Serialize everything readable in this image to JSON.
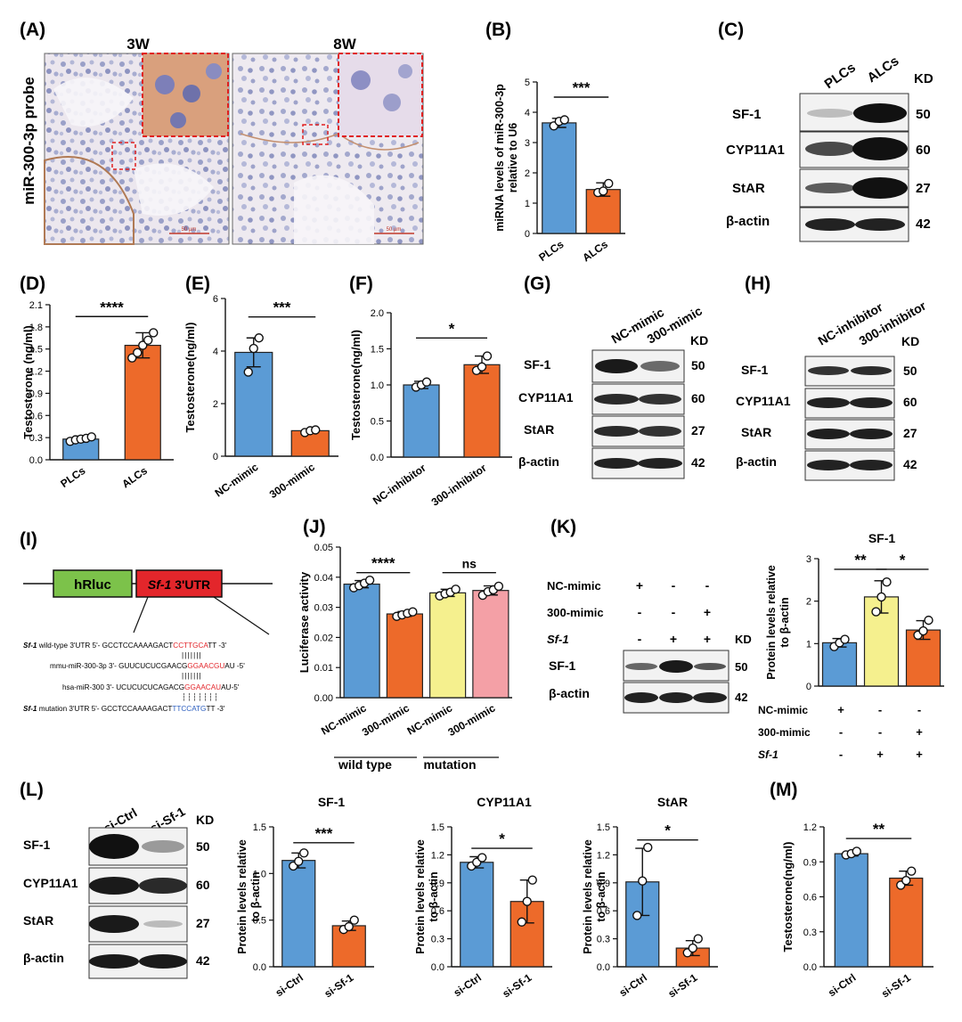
{
  "panel_labels": {
    "A": "(A)",
    "B": "(B)",
    "C": "(C)",
    "D": "(D)",
    "E": "(E)",
    "F": "(F)",
    "G": "(G)",
    "H": "(H)",
    "I": "(I)",
    "J": "(J)",
    "K": "(K)",
    "L": "(L)",
    "M": "(M)"
  },
  "common": {
    "kd": "KD",
    "sf1": "SF-1",
    "cyp": "CYP11A1",
    "star": "StAR",
    "actin": "β-actin",
    "kd50": "50",
    "kd60": "60",
    "kd27": "27",
    "kd42": "42",
    "plus": "+",
    "minus": "-"
  },
  "panelA": {
    "col1": "3W",
    "col2": "8W",
    "ylabel": "miR-300-3p probe",
    "scale": "50 µm"
  },
  "panelC": {
    "lanes": [
      "PLCs",
      "ALCs"
    ]
  },
  "panelG": {
    "lanes": [
      "NC-mimic",
      "300-mimic"
    ]
  },
  "panelH": {
    "lanes": [
      "NC-inhibitor",
      "300-inhibitor"
    ]
  },
  "panelI": {
    "hrluc": "hRluc",
    "sf1italic": "Sf-1",
    "utr": " 3'UTR",
    "r1": {
      "a": "Sf-1",
      "b": " wild-type  3'UTR  5'- GCCTCCAAAAGACT",
      "c": "CCTTGCA",
      "d": "TT -3'"
    },
    "r2": {
      "a": "mmu-miR-300-3p  3'- GUUCUCUCGAACG",
      "b": "GGAACGU",
      "c": "AU -5'"
    },
    "r3": {
      "a": "hsa-miR-300   3'- UCUCUCUCAGACG",
      "b": "GGAACAU",
      "c": "AU-5'"
    },
    "r4": {
      "a": "Sf-1",
      "b": " mutation  3'UTR  5'- GCCTCCAAAAGACT",
      "c": "TTCCATG",
      "d": "TT -3'"
    }
  },
  "panelJ": {
    "group1": "wild type",
    "group2": "mutation"
  },
  "panelK": {
    "rowlabels": [
      "NC-mimic",
      "300-mimic",
      "Sf-1"
    ],
    "signs": [
      [
        "+",
        "-",
        "-"
      ],
      [
        "-",
        "-",
        "+"
      ],
      [
        "-",
        "+",
        "+"
      ]
    ]
  },
  "panelL": {
    "lanes": [
      "si-Ctrl",
      "si-Sf-1"
    ]
  },
  "chart_data": [
    {
      "id": "B",
      "type": "bar",
      "categories": [
        "PLCs",
        "ALCs"
      ],
      "values": [
        3.65,
        1.45
      ],
      "errors": [
        0.15,
        0.22
      ],
      "points": [
        [
          3.55,
          3.7,
          3.75
        ],
        [
          1.35,
          1.4,
          1.65
        ]
      ],
      "colors": [
        "#5b9bd5",
        "#ed6a2a"
      ],
      "ylabel": "miRNA levels of miR-300-3p relative to U6",
      "ylim": [
        0,
        5
      ],
      "yticks": [
        0,
        1,
        2,
        3,
        4,
        5
      ],
      "sig": [
        {
          "a": 0,
          "b": 1,
          "label": "***",
          "y": 4.5
        }
      ]
    },
    {
      "id": "D",
      "type": "bar",
      "categories": [
        "PLCs",
        "ALCs"
      ],
      "values": [
        0.28,
        1.55
      ],
      "errors": [
        0.04,
        0.17
      ],
      "points": [
        [
          0.25,
          0.27,
          0.28,
          0.29,
          0.31
        ],
        [
          1.38,
          1.45,
          1.55,
          1.62,
          1.72
        ]
      ],
      "colors": [
        "#5b9bd5",
        "#ed6a2a"
      ],
      "ylabel": "Testosterone (ng/ml)",
      "ylim": [
        0,
        2.1
      ],
      "yticks": [
        "0.0",
        "0.3",
        "0.6",
        "0.9",
        "1.2",
        "1.5",
        "1.8",
        "2.1"
      ],
      "sig": [
        {
          "a": 0,
          "b": 1,
          "label": "****",
          "y": 1.94
        }
      ]
    },
    {
      "id": "E",
      "type": "bar",
      "categories": [
        "NC-mimic",
        "300-mimic"
      ],
      "values": [
        3.95,
        0.97
      ],
      "errors": [
        0.55,
        0.07
      ],
      "points": [
        [
          3.2,
          4.1,
          4.5
        ],
        [
          0.9,
          0.97,
          1.0
        ]
      ],
      "colors": [
        "#5b9bd5",
        "#ed6a2a"
      ],
      "ylabel": "Testosterone(ng/ml)",
      "ylim": [
        0,
        6
      ],
      "yticks": [
        0,
        2,
        4,
        6
      ],
      "sig": [
        {
          "a": 0,
          "b": 1,
          "label": "***",
          "y": 5.3
        }
      ]
    },
    {
      "id": "F",
      "type": "bar",
      "categories": [
        "NC-inhibitor",
        "300-inhibitor"
      ],
      "values": [
        1.0,
        1.28
      ],
      "errors": [
        0.05,
        0.12
      ],
      "points": [
        [
          0.97,
          1.0,
          1.04
        ],
        [
          1.2,
          1.25,
          1.4
        ]
      ],
      "colors": [
        "#5b9bd5",
        "#ed6a2a"
      ],
      "ylabel": "Testosterone(ng/ml)",
      "ylim": [
        0,
        2.0
      ],
      "yticks": [
        "0.0",
        "0.5",
        "1.0",
        "1.5",
        "2.0"
      ],
      "sig": [
        {
          "a": 0,
          "b": 1,
          "label": "*",
          "y": 1.65
        }
      ]
    },
    {
      "id": "J",
      "type": "bar",
      "categories": [
        "NC-mimic",
        "300-mimic",
        "NC-mimic",
        "300-mimic"
      ],
      "values": [
        0.0377,
        0.0278,
        0.0348,
        0.0356
      ],
      "errors": [
        0.0012,
        0.0008,
        0.0012,
        0.0015
      ],
      "points": [
        [
          0.0365,
          0.0372,
          0.038,
          0.039
        ],
        [
          0.027,
          0.0275,
          0.028,
          0.0285
        ],
        [
          0.0338,
          0.0345,
          0.035,
          0.036
        ],
        [
          0.034,
          0.0352,
          0.0358,
          0.037
        ]
      ],
      "colors": [
        "#5b9bd5",
        "#ed6a2a",
        "#f5f08e",
        "#f4a0a6"
      ],
      "ylabel": "Luciferase activity",
      "ylim": [
        0,
        0.05
      ],
      "yticks": [
        "0.00",
        "0.01",
        "0.02",
        "0.03",
        "0.04",
        "0.05"
      ],
      "sig": [
        {
          "a": 0,
          "b": 1,
          "label": "****",
          "y": 0.0415
        },
        {
          "a": 2,
          "b": 3,
          "label": "ns",
          "y": 0.0415
        }
      ]
    },
    {
      "id": "K",
      "type": "bar",
      "categories": [
        "",
        "",
        ""
      ],
      "values": [
        1.02,
        2.1,
        1.32
      ],
      "errors": [
        0.1,
        0.38,
        0.22
      ],
      "points": [
        [
          0.93,
          1.02,
          1.1
        ],
        [
          1.75,
          2.1,
          2.45
        ],
        [
          1.2,
          1.3,
          1.55
        ]
      ],
      "colors": [
        "#5b9bd5",
        "#f5f08e",
        "#ed6a2a"
      ],
      "title": "SF-1",
      "ylabel": "Protein levels relative to β-actin",
      "ylim": [
        0,
        3
      ],
      "yticks": [
        0,
        1,
        2,
        3
      ],
      "sig": [
        {
          "a": 0,
          "b": 1,
          "label": "**",
          "y": 2.75
        },
        {
          "a": 1,
          "b": 2,
          "label": "*",
          "y": 2.75
        }
      ]
    },
    {
      "id": "L1",
      "type": "bar",
      "categories": [
        "si-Ctrl",
        "si-Sf-1"
      ],
      "values": [
        1.14,
        0.44
      ],
      "errors": [
        0.08,
        0.05
      ],
      "points": [
        [
          1.08,
          1.13,
          1.22
        ],
        [
          0.4,
          0.43,
          0.5
        ]
      ],
      "colors": [
        "#5b9bd5",
        "#ed6a2a"
      ],
      "title": "SF-1",
      "ylabel": "Protein levels relative to β-actin",
      "ylim": [
        0,
        1.5
      ],
      "yticks": [
        "0.0",
        "0.5",
        "1.0",
        "1.5"
      ],
      "sig": [
        {
          "a": 0,
          "b": 1,
          "label": "***",
          "y": 1.33
        }
      ]
    },
    {
      "id": "L2",
      "type": "bar",
      "categories": [
        "si-Ctrl",
        "si-Sf-1"
      ],
      "values": [
        1.12,
        0.7
      ],
      "errors": [
        0.06,
        0.23
      ],
      "points": [
        [
          1.08,
          1.12,
          1.17
        ],
        [
          0.48,
          0.7,
          0.93
        ]
      ],
      "colors": [
        "#5b9bd5",
        "#ed6a2a"
      ],
      "title": "CYP11A1",
      "ylabel": "Protein levels relative to β-actin",
      "ylim": [
        0,
        1.5
      ],
      "yticks": [
        "0.0",
        "0.3",
        "0.6",
        "0.9",
        "1.2",
        "1.5"
      ],
      "sig": [
        {
          "a": 0,
          "b": 1,
          "label": "*",
          "y": 1.27
        }
      ]
    },
    {
      "id": "L3",
      "type": "bar",
      "categories": [
        "si-Ctrl",
        "si-Sf-1"
      ],
      "values": [
        0.91,
        0.2
      ],
      "errors": [
        0.36,
        0.08
      ],
      "points": [
        [
          0.55,
          0.92,
          1.28
        ],
        [
          0.15,
          0.2,
          0.3
        ]
      ],
      "colors": [
        "#5b9bd5",
        "#ed6a2a"
      ],
      "title": "StAR",
      "ylabel": "Protein levels relative to β-actin",
      "ylim": [
        0,
        1.5
      ],
      "yticks": [
        "0.0",
        "0.3",
        "0.6",
        "0.9",
        "1.2",
        "1.5"
      ],
      "sig": [
        {
          "a": 0,
          "b": 1,
          "label": "*",
          "y": 1.36
        }
      ]
    },
    {
      "id": "M",
      "type": "bar",
      "categories": [
        "si-Ctrl",
        "si-Sf-1"
      ],
      "values": [
        0.97,
        0.76
      ],
      "errors": [
        0.02,
        0.06
      ],
      "points": [
        [
          0.96,
          0.97,
          0.99
        ],
        [
          0.7,
          0.74,
          0.82
        ]
      ],
      "colors": [
        "#5b9bd5",
        "#ed6a2a"
      ],
      "ylabel": "Testosterone(ng/ml)",
      "ylim": [
        0,
        1.2
      ],
      "yticks": [
        "0.0",
        "0.3",
        "0.6",
        "0.9",
        "1.2"
      ],
      "sig": [
        {
          "a": 0,
          "b": 1,
          "label": "**",
          "y": 1.1
        }
      ]
    }
  ]
}
